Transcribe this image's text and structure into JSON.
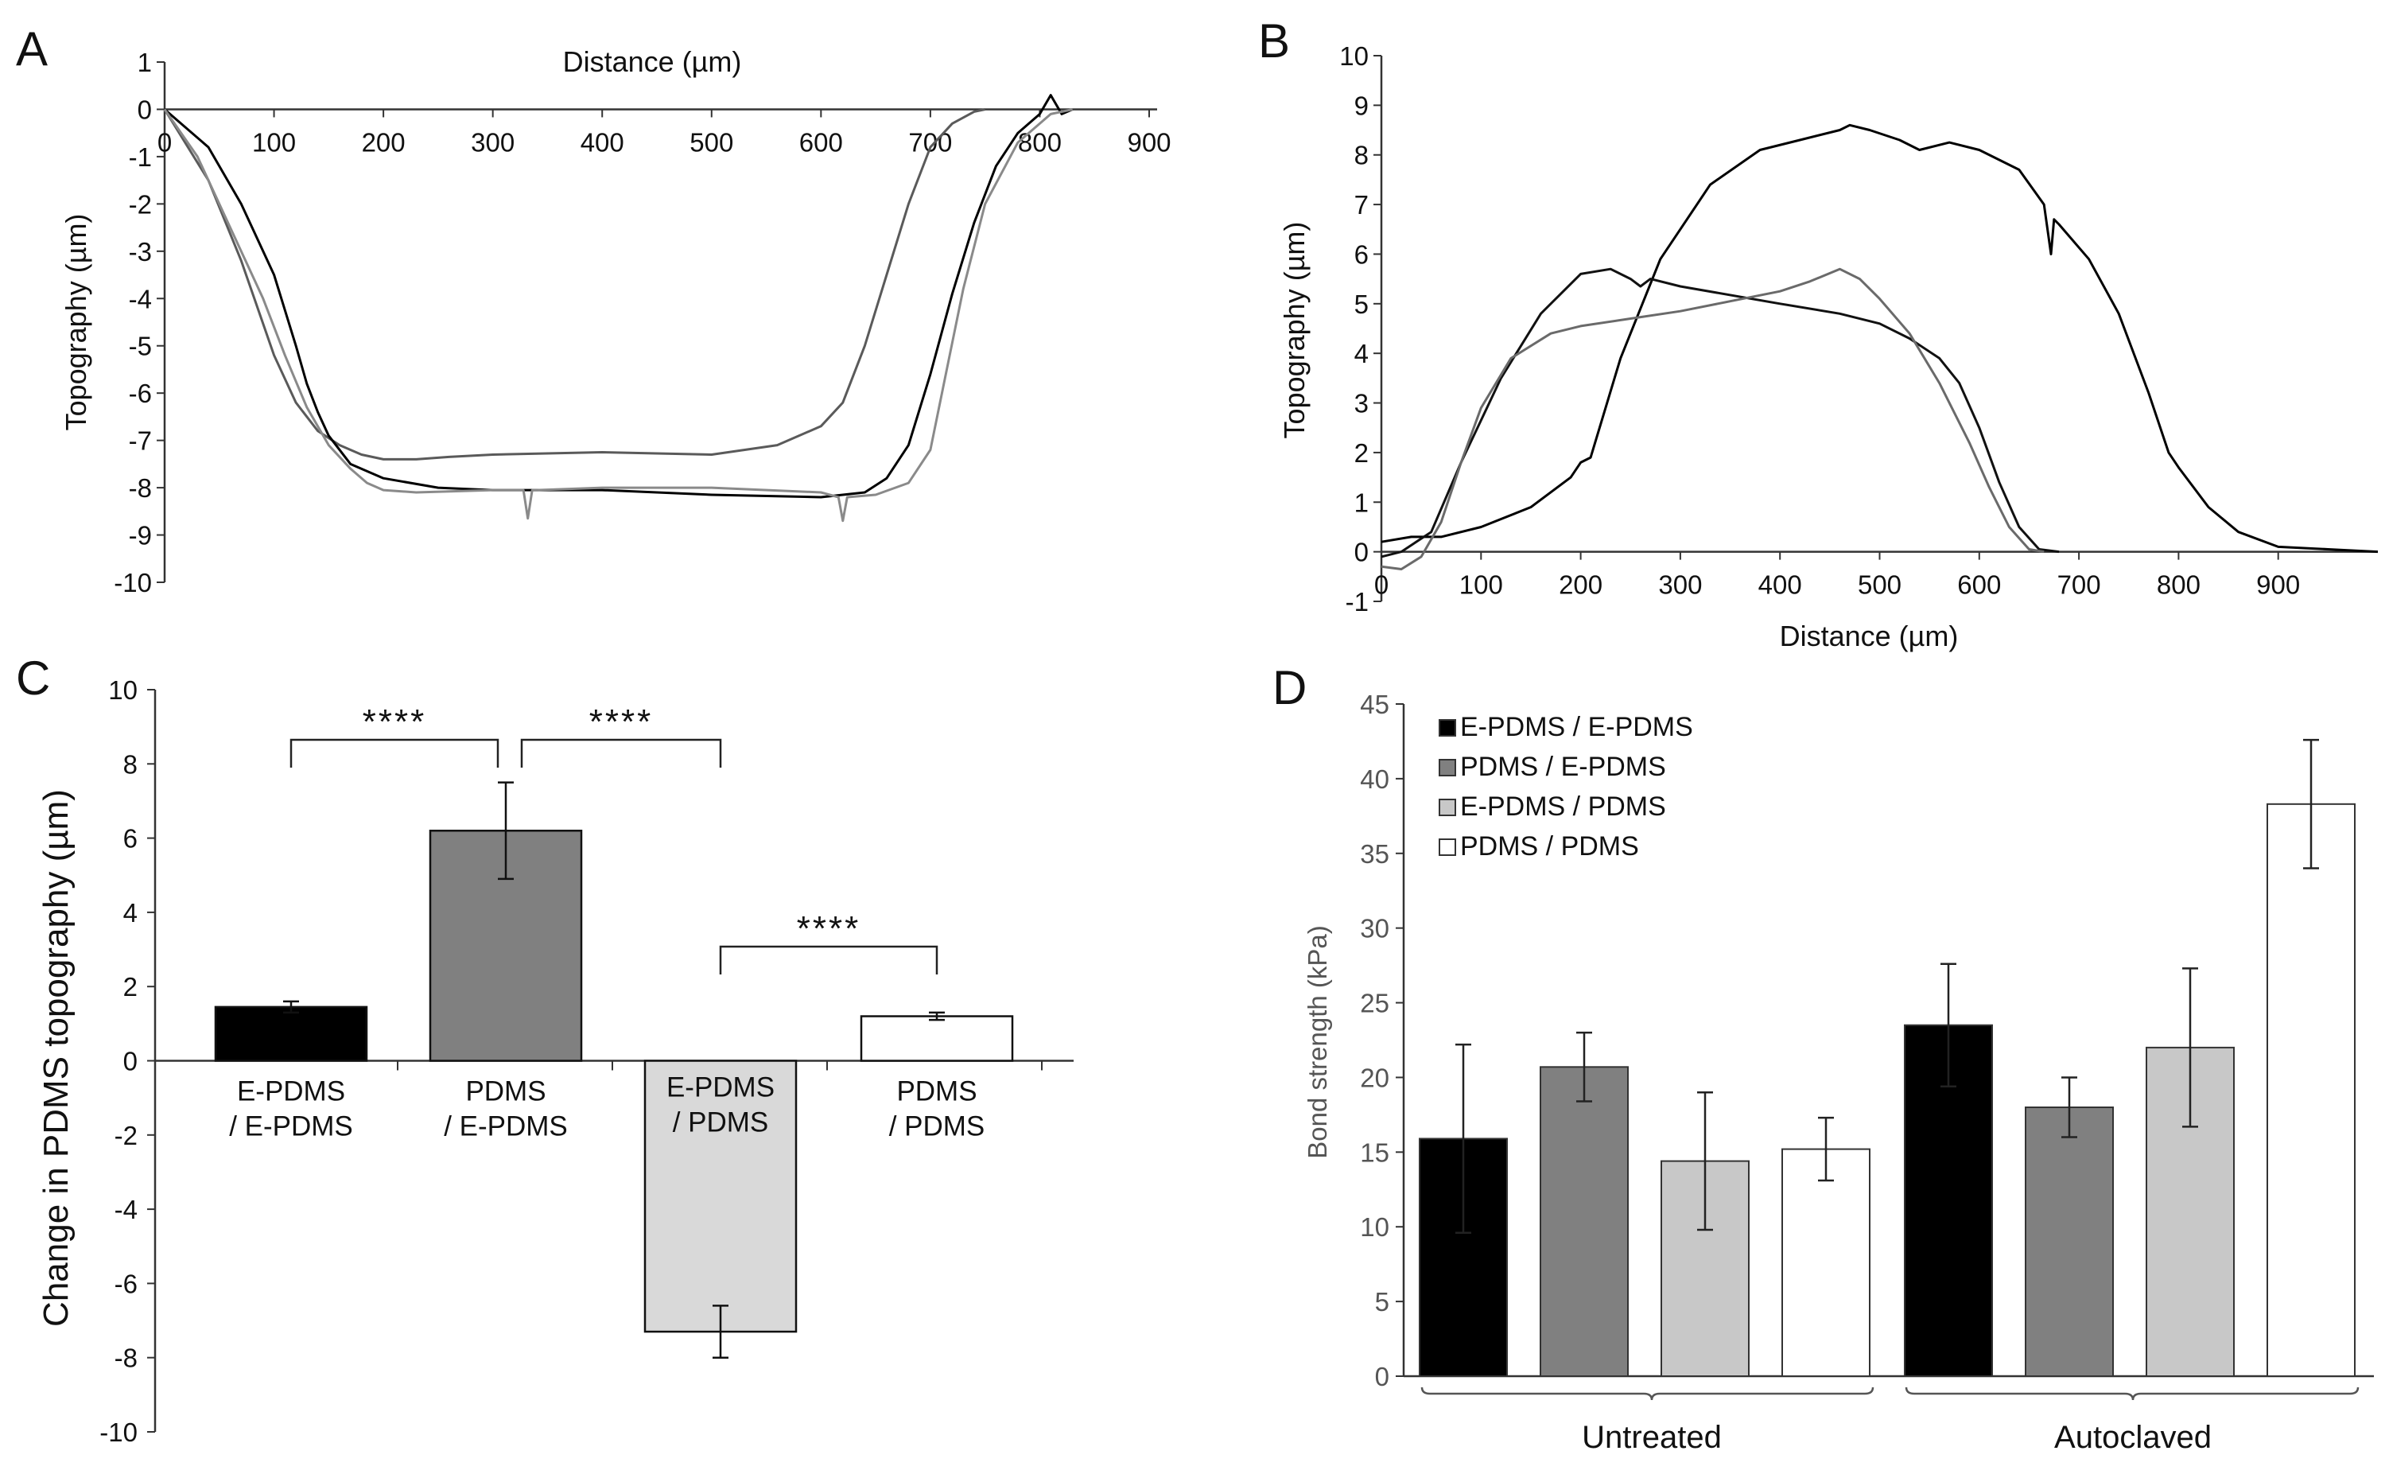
{
  "chart_data": [
    {
      "panel": "A",
      "type": "line",
      "xlabel": "Distance (µm)",
      "ylabel": "Topography (µm)",
      "xlim": [
        0,
        900
      ],
      "ylim": [
        -10,
        1
      ],
      "x_ticks": [
        "0",
        "100",
        "200",
        "300",
        "400",
        "500",
        "600",
        "700",
        "800",
        "900"
      ],
      "y_ticks": [
        "1",
        "0",
        "-1",
        "-2",
        "-3",
        "-4",
        "-5",
        "-6",
        "-7",
        "-8",
        "-9",
        "-10"
      ],
      "x_axis_position": "top (at y = 0)",
      "series": [
        {
          "color": "#5a5a5a",
          "x": [
            0,
            40,
            70,
            100,
            120,
            140,
            160,
            180,
            200,
            230,
            260,
            300,
            400,
            500,
            560,
            600,
            620,
            640,
            660,
            680,
            700,
            720,
            740,
            750
          ],
          "y": [
            0,
            -1.5,
            -3.2,
            -5.2,
            -6.2,
            -6.8,
            -7.1,
            -7.3,
            -7.4,
            -7.4,
            -7.35,
            -7.3,
            -7.25,
            -7.3,
            -7.1,
            -6.7,
            -6.2,
            -5,
            -3.5,
            -2,
            -0.8,
            -0.3,
            -0.05,
            0
          ]
        },
        {
          "color": "#000000",
          "x": [
            0,
            40,
            70,
            100,
            120,
            130,
            140,
            150,
            170,
            200,
            250,
            300,
            400,
            500,
            600,
            640,
            660,
            680,
            700,
            720,
            740,
            760,
            780,
            800,
            810,
            820,
            830
          ],
          "y": [
            0,
            -0.8,
            -2,
            -3.5,
            -5,
            -5.8,
            -6.4,
            -6.9,
            -7.5,
            -7.8,
            -8,
            -8.05,
            -8.05,
            -8.15,
            -8.2,
            -8.1,
            -7.8,
            -7.1,
            -5.6,
            -3.9,
            -2.4,
            -1.2,
            -0.5,
            -0.1,
            0.3,
            -0.1,
            0
          ]
        },
        {
          "color": "#8a8a8a",
          "x": [
            0,
            30,
            60,
            90,
            110,
            130,
            150,
            170,
            185,
            200,
            230,
            300,
            328,
            332,
            336,
            340,
            400,
            500,
            600,
            616,
            620,
            624,
            650,
            680,
            700,
            715,
            730,
            750,
            780,
            810,
            830
          ],
          "y": [
            0,
            -1,
            -2.5,
            -4,
            -5.2,
            -6.3,
            -7.1,
            -7.6,
            -7.9,
            -8.05,
            -8.1,
            -8.05,
            -8.05,
            -8.65,
            -8.05,
            -8.05,
            -8.0,
            -8.0,
            -8.1,
            -8.2,
            -8.7,
            -8.2,
            -8.15,
            -7.9,
            -7.2,
            -5.5,
            -3.8,
            -2,
            -0.7,
            -0.1,
            0
          ]
        }
      ]
    },
    {
      "panel": "B",
      "type": "line",
      "xlabel": "Distance (µm)",
      "ylabel": "Topography (µm)",
      "xlim": [
        0,
        1000
      ],
      "ylim": [
        -1,
        10
      ],
      "x_ticks": [
        "0",
        "100",
        "200",
        "300",
        "400",
        "500",
        "600",
        "700",
        "800",
        "900"
      ],
      "y_ticks": [
        "10",
        "9",
        "8",
        "7",
        "6",
        "5",
        "4",
        "3",
        "2",
        "1",
        "0",
        "-1"
      ],
      "series": [
        {
          "color": "#000000",
          "x": [
            0,
            30,
            60,
            100,
            150,
            190,
            200,
            210,
            240,
            280,
            330,
            380,
            420,
            460,
            470,
            490,
            520,
            540,
            570,
            600,
            640,
            665,
            672,
            675,
            680,
            710,
            740,
            770,
            790,
            800,
            830,
            860,
            900,
            950,
            1000
          ],
          "y": [
            0.2,
            0.3,
            0.3,
            0.5,
            0.9,
            1.5,
            1.8,
            1.9,
            3.9,
            5.9,
            7.4,
            8.1,
            8.3,
            8.5,
            8.6,
            8.5,
            8.3,
            8.1,
            8.25,
            8.1,
            7.7,
            7.0,
            6.0,
            6.7,
            6.6,
            5.9,
            4.8,
            3.2,
            2.0,
            1.7,
            0.9,
            0.4,
            0.1,
            0.05,
            0
          ]
        },
        {
          "color": "#111111",
          "x": [
            0,
            20,
            50,
            80,
            120,
            160,
            200,
            230,
            250,
            260,
            270,
            300,
            400,
            460,
            500,
            530,
            560,
            580,
            600,
            620,
            640,
            660,
            680
          ],
          "y": [
            -0.1,
            0,
            0.4,
            1.8,
            3.5,
            4.8,
            5.6,
            5.7,
            5.5,
            5.35,
            5.5,
            5.35,
            5.0,
            4.8,
            4.6,
            4.3,
            3.9,
            3.4,
            2.5,
            1.4,
            0.5,
            0.05,
            0
          ]
        },
        {
          "color": "#6a6a6a",
          "x": [
            0,
            20,
            40,
            60,
            80,
            100,
            130,
            170,
            200,
            250,
            300,
            350,
            400,
            430,
            460,
            480,
            500,
            530,
            560,
            590,
            610,
            630,
            650,
            665
          ],
          "y": [
            -0.3,
            -0.35,
            -0.1,
            0.6,
            1.8,
            2.9,
            3.9,
            4.4,
            4.55,
            4.7,
            4.85,
            5.05,
            5.25,
            5.45,
            5.7,
            5.5,
            5.1,
            4.4,
            3.4,
            2.2,
            1.3,
            0.5,
            0.05,
            0
          ]
        }
      ]
    },
    {
      "panel": "C",
      "type": "bar",
      "ylabel": "Change in PDMS topography (µm)",
      "ylim": [
        -10,
        10
      ],
      "y_ticks": [
        "10",
        "8",
        "6",
        "4",
        "2",
        "0",
        "-2",
        "-4",
        "-6",
        "-8",
        "-10"
      ],
      "categories": [
        [
          "E-PDMS",
          "/ E-PDMS"
        ],
        [
          "PDMS",
          "/ E-PDMS"
        ],
        [
          "E-PDMS",
          "/ PDMS"
        ],
        [
          "PDMS",
          "/ PDMS"
        ]
      ],
      "values": [
        1.45,
        6.2,
        -7.3,
        1.2
      ],
      "errors": [
        0.15,
        1.3,
        0.7,
        0.1
      ],
      "colors": [
        "#000000",
        "#808080",
        "#d9d9d9",
        "#ffffff"
      ],
      "significance": [
        {
          "from": 0,
          "to": 1,
          "label": "****"
        },
        {
          "from": 1,
          "to": 2,
          "label": "****"
        },
        {
          "from": 2,
          "to": 3,
          "label": "****"
        }
      ]
    },
    {
      "panel": "D",
      "type": "bar",
      "ylabel": "Bond strength (kPa)",
      "ylim": [
        0,
        45
      ],
      "y_ticks": [
        "45",
        "40",
        "35",
        "30",
        "25",
        "20",
        "15",
        "10",
        "5",
        "0"
      ],
      "categories": [
        "Untreated",
        "Autoclaved"
      ],
      "legend_position": "top-left",
      "series": [
        {
          "name": "E-PDMS / E-PDMS",
          "color": "#000000",
          "values": [
            15.9,
            23.5
          ],
          "errors": [
            6.3,
            4.1
          ]
        },
        {
          "name": "PDMS / E-PDMS",
          "color": "#808080",
          "values": [
            20.7,
            18.0
          ],
          "errors": [
            2.3,
            2.0
          ]
        },
        {
          "name": "E-PDMS / PDMS",
          "color": "#c8c8c8",
          "values": [
            14.4,
            22.0
          ],
          "errors": [
            4.6,
            5.3
          ]
        },
        {
          "name": "PDMS / PDMS",
          "color": "#ffffff",
          "values": [
            15.2,
            38.3
          ],
          "errors": [
            2.1,
            4.3
          ]
        }
      ]
    }
  ],
  "panel_letters": [
    "A",
    "B",
    "C",
    "D"
  ]
}
